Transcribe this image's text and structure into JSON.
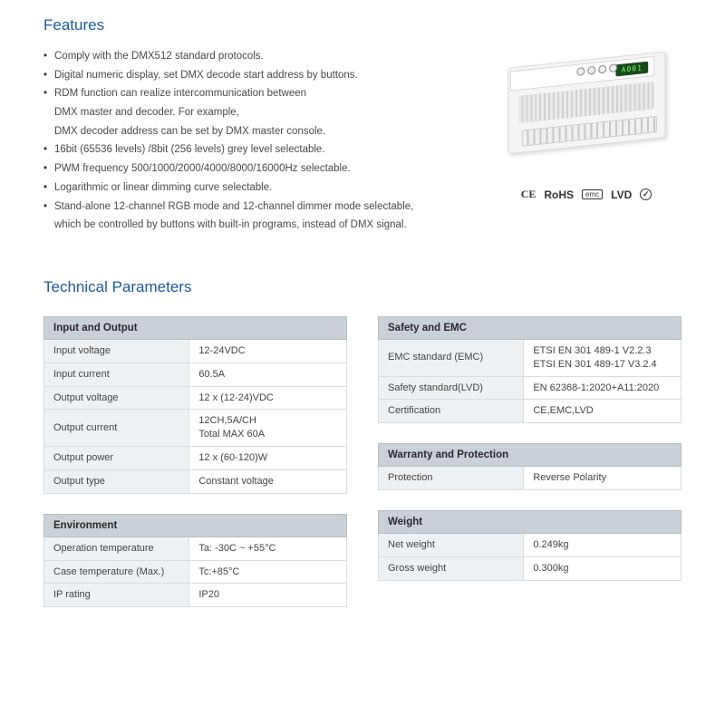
{
  "colors": {
    "heading": "#1a5a9e",
    "text": "#4a4a4a",
    "table_header_bg": "#c9d0d6",
    "table_label_bg": "#eef1f3",
    "border": "#d8dde1"
  },
  "features": {
    "title": "Features",
    "items": [
      "Comply with the DMX512 standard protocols.",
      "Digital numeric display, set DMX decode start address by buttons.",
      "RDM function can realize intercommunication between",
      "DMX master and decoder. For example,",
      "DMX decoder address can be set by DMX master console.",
      "16bit (65536 levels) /8bit (256 levels) grey level selectable.",
      "PWM frequency 500/1000/2000/4000/8000/16000Hz selectable.",
      "Logarithmic or linear dimming curve selectable.",
      "Stand-alone 12-channel RGB mode and 12-channel dimmer mode selectable,",
      "which be controlled by buttons with built-in programs, instead of DMX signal."
    ],
    "bulleted": [
      true,
      true,
      true,
      false,
      false,
      true,
      true,
      true,
      true,
      false
    ]
  },
  "product": {
    "lcd_text": "A001",
    "cert_ce": "CE",
    "cert_rohs": "RoHS",
    "cert_emc": "emc",
    "cert_lvd": "LVD",
    "cert_check": "✓"
  },
  "tech_title": "Technical Parameters",
  "tables": {
    "io": {
      "header": "Input and Output",
      "rows": [
        [
          "Input voltage",
          "12-24VDC"
        ],
        [
          "Input current",
          "60.5A"
        ],
        [
          "Output voltage",
          "12 x (12-24)VDC"
        ],
        [
          "Output current",
          "12CH,5A/CH\nTotal MAX 60A"
        ],
        [
          "Output power",
          "12 x (60-120)W"
        ],
        [
          "Output type",
          "Constant voltage"
        ]
      ]
    },
    "safety": {
      "header": "Safety and EMC",
      "rows": [
        [
          "EMC standard (EMC)",
          "ETSI EN 301 489-1 V2.2.3\nETSI EN 301 489-17 V3.2.4"
        ],
        [
          "Safety standard(LVD)",
          "EN 62368-1:2020+A11:2020"
        ],
        [
          "Certification",
          "CE,EMC,LVD"
        ]
      ]
    },
    "warranty": {
      "header": "Warranty and Protection",
      "rows": [
        [
          "Protection",
          "Reverse Polarity"
        ]
      ]
    },
    "env": {
      "header": "Environment",
      "rows": [
        [
          "Operation temperature",
          "Ta: -30C ~ +55°C"
        ],
        [
          "Case temperature (Max.)",
          "Tc:+85°C"
        ],
        [
          "IP rating",
          "IP20"
        ]
      ]
    },
    "weight": {
      "header": "Weight",
      "rows": [
        [
          "Net weight",
          "0.249kg"
        ],
        [
          "Gross weight",
          "0.300kg"
        ]
      ]
    }
  }
}
